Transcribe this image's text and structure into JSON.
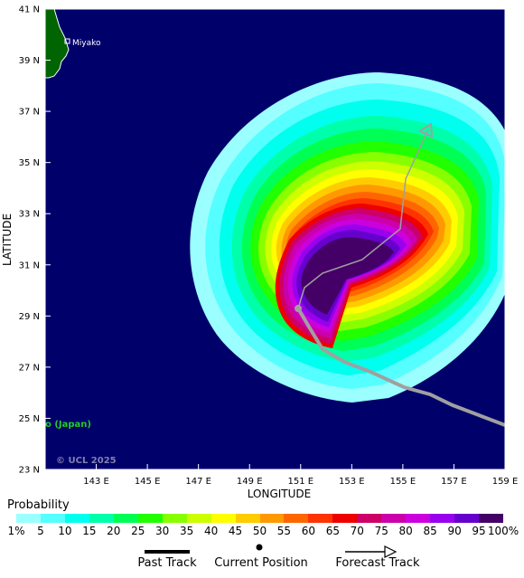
{
  "map": {
    "lat_labels": [
      "41 N",
      "39 N",
      "37 N",
      "35 N",
      "33 N",
      "31 N",
      "29 N",
      "27 N",
      "25 N",
      "23 N"
    ],
    "lon_labels": [
      "143 E",
      "145 E",
      "147 E",
      "149 E",
      "151 E",
      "153 E",
      "155 E",
      "157 E",
      "159 E"
    ],
    "x_axis_title": "LONGITUDE",
    "y_axis_title": "LATITUDE",
    "place_label": "Miyako",
    "region_label": "o (Japan)",
    "copyright": "© UCL 2025",
    "colors": {
      "ocean": "#00006b",
      "land": "#006400",
      "track": "#a0a0a0",
      "region_label": "#22cc22"
    }
  },
  "legend": {
    "title": "Probability",
    "ticks": [
      "1%",
      "5",
      "10",
      "15",
      "20",
      "25",
      "30",
      "35",
      "40",
      "45",
      "50",
      "55",
      "60",
      "65",
      "70",
      "75",
      "80",
      "85",
      "90",
      "95",
      "100%"
    ],
    "colors": [
      "#9bffff",
      "#55ffff",
      "#00ffee",
      "#00ffaa",
      "#00ff55",
      "#22ff00",
      "#88ff00",
      "#ccff00",
      "#ffff00",
      "#ffcc00",
      "#ff9900",
      "#ff6600",
      "#ff3300",
      "#ee0000",
      "#cc0066",
      "#cc00aa",
      "#cc00dd",
      "#9900ee",
      "#6600cc",
      "#440066"
    ],
    "past_track_label": "Past Track",
    "current_position_label": "Current Position",
    "forecast_track_label": "Forecast Track"
  }
}
